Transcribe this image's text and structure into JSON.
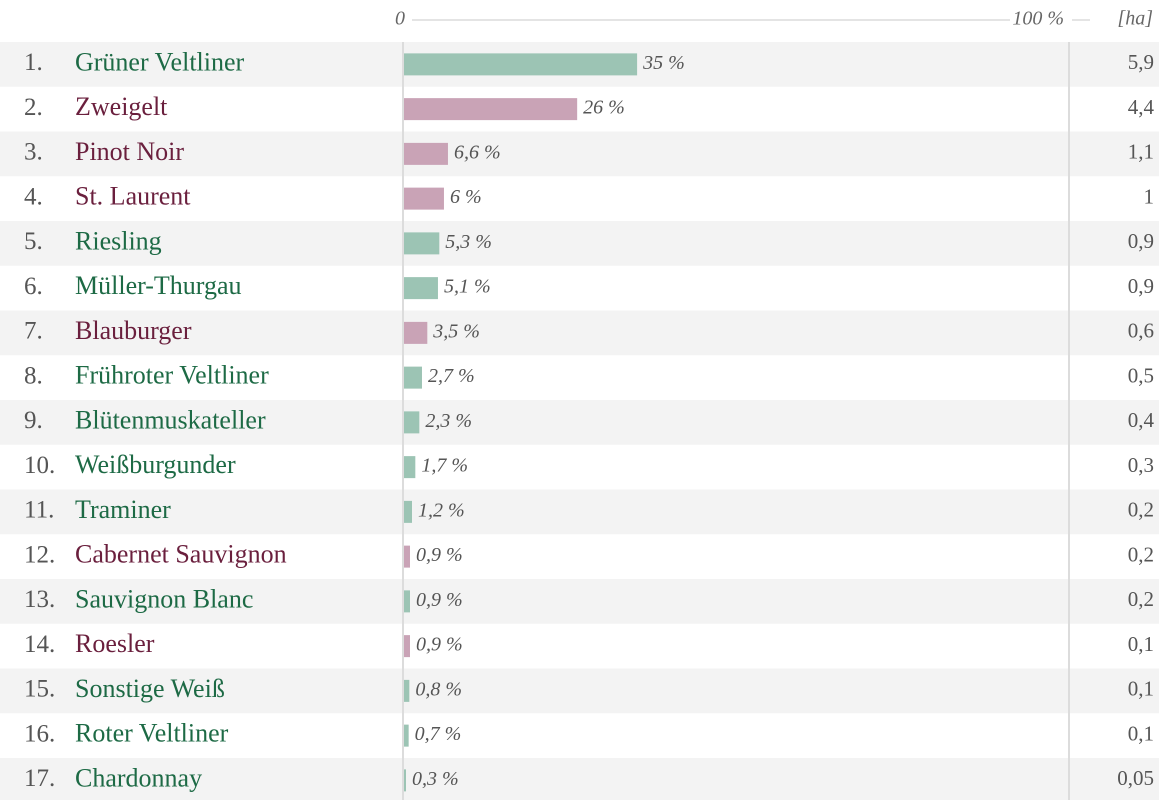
{
  "chart_data": {
    "type": "bar",
    "orientation": "horizontal",
    "ranks": [
      "1.",
      "2.",
      "3.",
      "4.",
      "5.",
      "6.",
      "7.",
      "8.",
      "9.",
      "10.",
      "11.",
      "12.",
      "13.",
      "14.",
      "15.",
      "16.",
      "17."
    ],
    "categories": [
      "Grüner Veltliner",
      "Zweigelt",
      "Pinot Noir",
      "St. Laurent",
      "Riesling",
      "Müller-Thurgau",
      "Blauburger",
      "Frühroter Veltliner",
      "Blütenmuskateller",
      "Weißburgunder",
      "Traminer",
      "Cabernet Sauvignon",
      "Sauvignon Blanc",
      "Roesler",
      "Sonstige Weiß",
      "Roter Veltliner",
      "Chardonnay"
    ],
    "values": [
      35,
      26,
      6.6,
      6,
      5.3,
      5.1,
      3.5,
      2.7,
      2.3,
      1.7,
      1.2,
      0.9,
      0.9,
      0.9,
      0.8,
      0.7,
      0.3
    ],
    "value_labels": [
      "35 %",
      "26 %",
      "6,6 %",
      "6 %",
      "5,3 %",
      "5,1 %",
      "3,5 %",
      "2,7 %",
      "2,3 %",
      "1,7 %",
      "1,2 %",
      "0,9 %",
      "0,9 %",
      "0,9 %",
      "0,8 %",
      "0,7 %",
      "0,3 %"
    ],
    "colors": [
      "#9cc4b4",
      "#c9a3b6",
      "#c9a3b6",
      "#c9a3b6",
      "#9cc4b4",
      "#9cc4b4",
      "#c9a3b6",
      "#9cc4b4",
      "#9cc4b4",
      "#9cc4b4",
      "#9cc4b4",
      "#c9a3b6",
      "#9cc4b4",
      "#c9a3b6",
      "#9cc4b4",
      "#9cc4b4",
      "#9cc4b4"
    ],
    "label_colors": [
      "#1d6a45",
      "#6a1f3d",
      "#6a1f3d",
      "#6a1f3d",
      "#1d6a45",
      "#1d6a45",
      "#6a1f3d",
      "#1d6a45",
      "#1d6a45",
      "#1d6a45",
      "#1d6a45",
      "#6a1f3d",
      "#1d6a45",
      "#6a1f3d",
      "#1d6a45",
      "#1d6a45",
      "#1d6a45"
    ],
    "xlim": [
      0,
      100
    ],
    "xticks": [
      0,
      {
        "value": 100,
        "label": "100 %"
      }
    ],
    "area_column": {
      "label": "[ha]",
      "values": [
        5.9,
        4.4,
        1.1,
        1,
        0.9,
        0.9,
        0.6,
        0.5,
        0.4,
        0.3,
        0.2,
        0.2,
        0.2,
        0.1,
        0.1,
        0.1,
        0.05
      ],
      "value_labels": [
        "5,9",
        "4,4",
        "1,1",
        "1",
        "0,9",
        "0,9",
        "0,6",
        "0,5",
        "0,4",
        "0,3",
        "0,2",
        "0,2",
        "0,2",
        "0,1",
        "0,1",
        "0,1",
        "0,05"
      ]
    }
  }
}
